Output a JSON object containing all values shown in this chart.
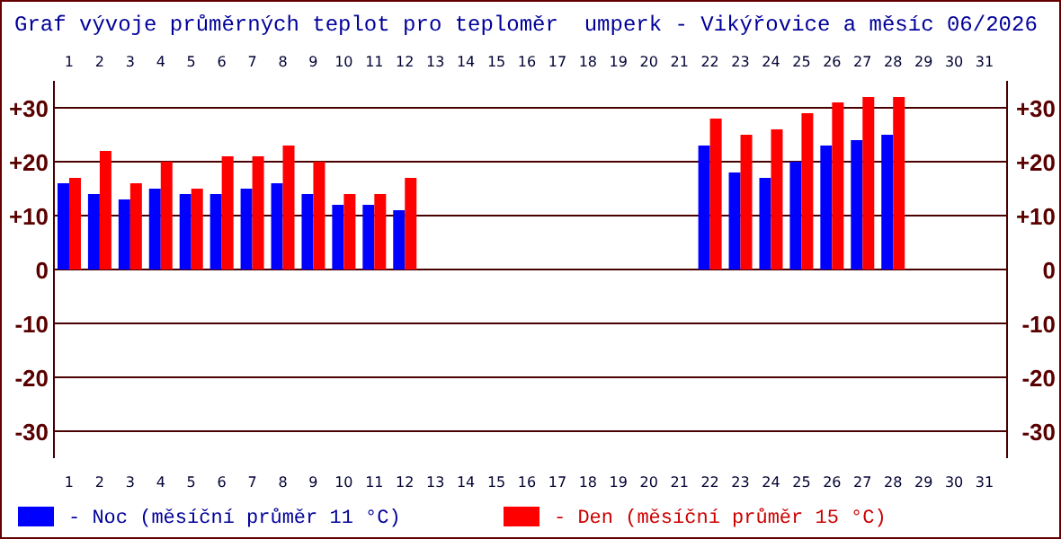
{
  "chart_data": {
    "type": "bar",
    "title": "Graf vývoje průměrných teplot pro teploměr  umperk - Vikýřovice a měsíc 06/2026",
    "categories": [
      "1",
      "2",
      "3",
      "4",
      "5",
      "6",
      "7",
      "8",
      "9",
      "10",
      "11",
      "12",
      "13",
      "14",
      "15",
      "16",
      "17",
      "18",
      "19",
      "20",
      "21",
      "22",
      "23",
      "24",
      "25",
      "26",
      "27",
      "28",
      "29",
      "30",
      "31"
    ],
    "series": [
      {
        "name": "- Noc (měsíční průměr 11 °C)",
        "color": "#0000ff",
        "values": [
          16,
          14,
          13,
          15,
          14,
          14,
          15,
          16,
          14,
          12,
          12,
          11,
          null,
          null,
          null,
          null,
          null,
          null,
          null,
          null,
          null,
          23,
          18,
          17,
          20,
          23,
          24,
          25,
          null,
          null,
          null
        ]
      },
      {
        "name": "- Den (měsíční průměr 15 °C)",
        "color": "#ff0000",
        "values": [
          17,
          22,
          16,
          20,
          15,
          21,
          21,
          23,
          20,
          14,
          14,
          17,
          null,
          null,
          null,
          null,
          null,
          null,
          null,
          null,
          null,
          28,
          25,
          26,
          29,
          31,
          32,
          32,
          null,
          null,
          null
        ]
      }
    ],
    "ylim": [
      -35,
      35
    ],
    "yticks": [
      {
        "value": 30,
        "label": "+30"
      },
      {
        "value": 20,
        "label": "+20"
      },
      {
        "value": 10,
        "label": "+10"
      },
      0,
      -10,
      -20,
      -30
    ],
    "y2lim": [
      -35,
      35
    ],
    "y2ticks": [
      {
        "value": 30,
        "label": "+30"
      },
      {
        "value": 20,
        "label": "+20"
      },
      {
        "value": 10,
        "label": "+10"
      },
      0,
      -10,
      -20,
      -30
    ],
    "grid": "y",
    "legend": "bottom"
  }
}
